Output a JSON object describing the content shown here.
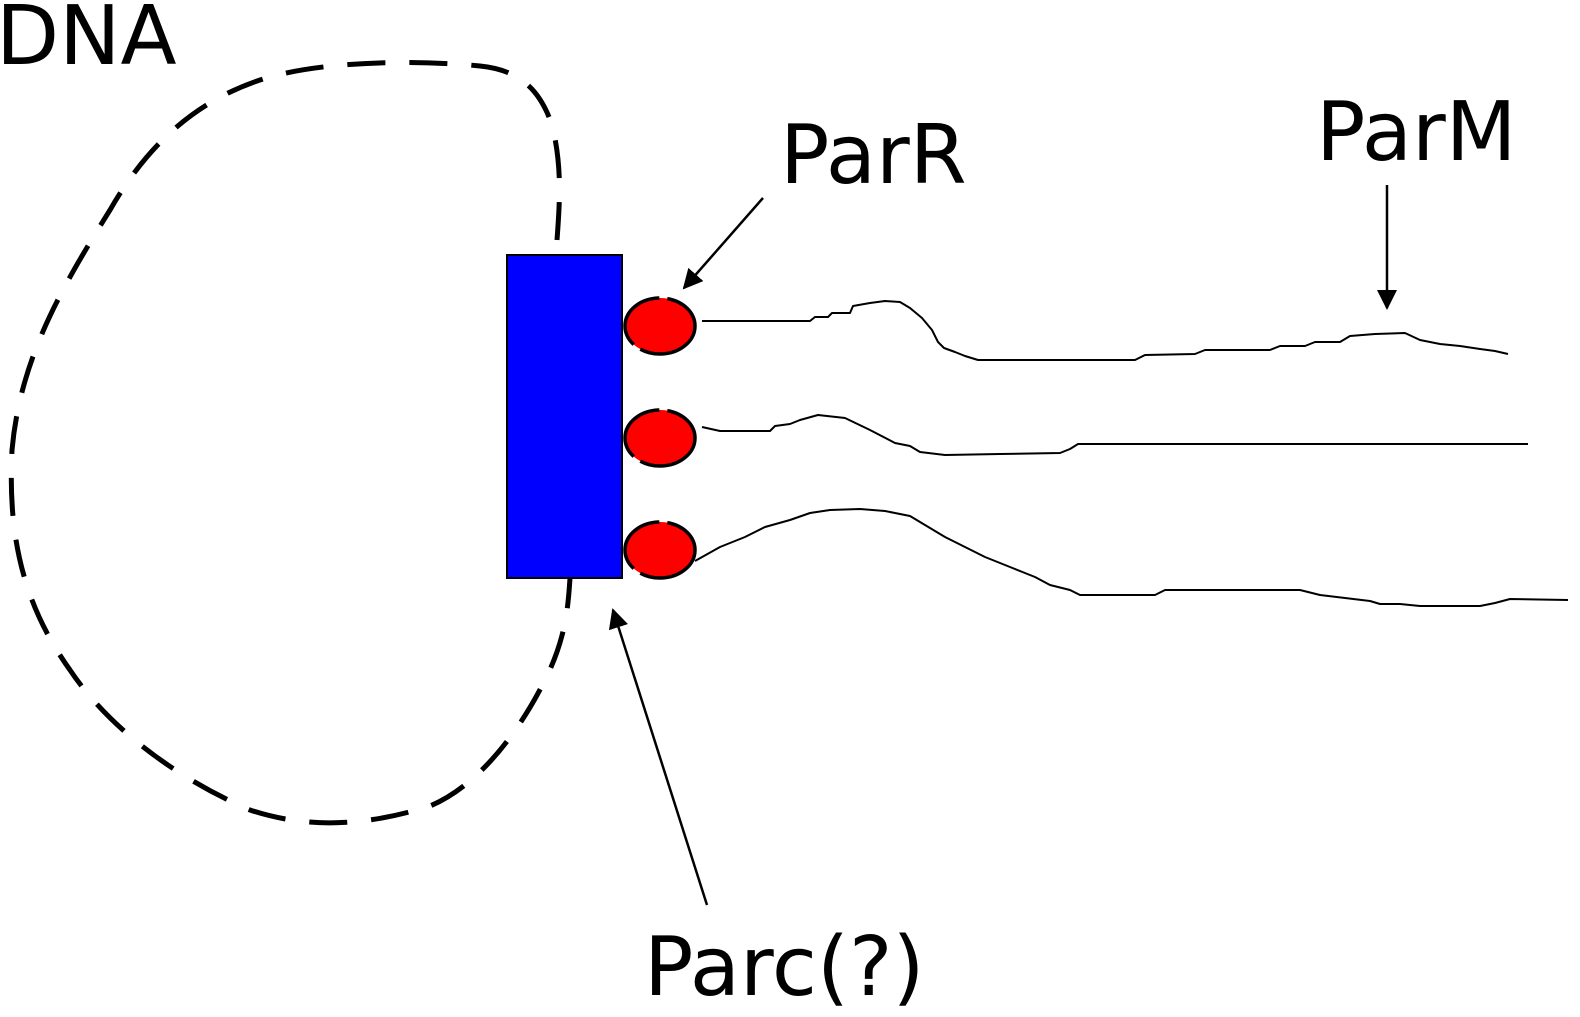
{
  "labels": {
    "dna": "DNA",
    "parr": "ParR",
    "parm": "ParM",
    "parc": "Parc(?)"
  },
  "colors": {
    "parc_block": "#0000ff",
    "parr_protein": "#ff0000",
    "stroke": "#000000",
    "background": "#ffffff"
  }
}
